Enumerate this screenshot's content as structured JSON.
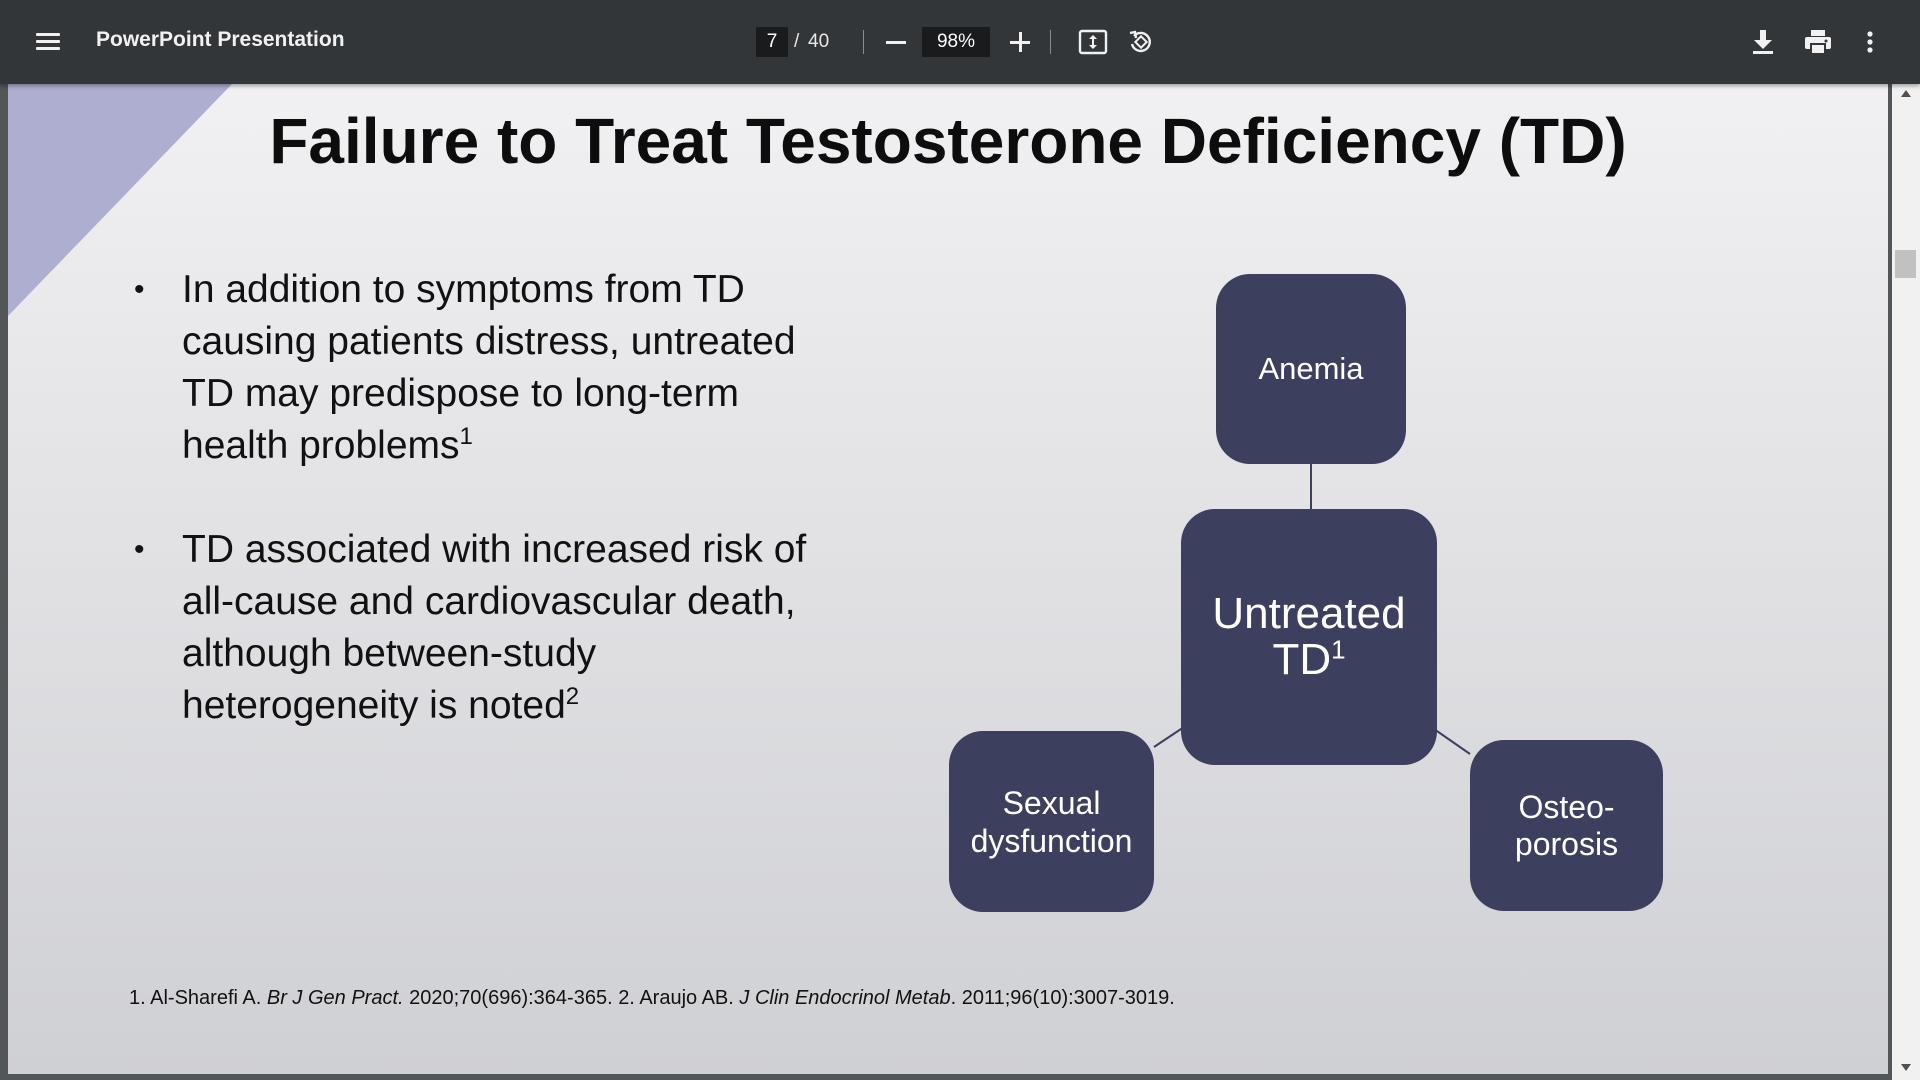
{
  "toolbar": {
    "title": "PowerPoint Presentation",
    "current_page": "7",
    "page_separator": "/",
    "total_pages": "40",
    "zoom": "98%",
    "icons": [
      "menu-icon",
      "zoom-out-icon",
      "zoom-in-icon",
      "fit-to-page-icon",
      "rotate-icon",
      "download-icon",
      "print-icon",
      "more-vert-icon"
    ]
  },
  "slide": {
    "title": "Failure to Treat Testosterone Deficiency (TD)",
    "bullets": [
      {
        "text": "In addition to symptoms from TD causing patients distress, untreated TD may predispose to long-term health problems",
        "sup": "1"
      },
      {
        "text": "TD associated with increased risk of all-cause and cardiovascular death, although between-study heterogeneity is noted",
        "sup": "2"
      }
    ],
    "diagram": {
      "center": {
        "text": "Untreated TD",
        "sup": "1"
      },
      "nodes": {
        "top": "Anemia",
        "left_line1": "Sexual",
        "left_line2": "dysfunction",
        "right_line1": "Osteo-",
        "right_line2": "porosis"
      }
    },
    "references": {
      "ref1_prefix": "1. Al-Sharefi A. ",
      "ref1_journal": "Br J Gen Pract.",
      "ref1_suffix": " 2020;70(696):364-365.  2. Araujo AB. ",
      "ref2_journal": "J Clin Endocrinol Metab",
      "ref2_suffix": ". 2011;96(10):3007-3019."
    }
  },
  "colors": {
    "toolbar_bg": "#323639",
    "node_fill": "#3d3f5f",
    "corner_accent": "#aeaed0"
  }
}
